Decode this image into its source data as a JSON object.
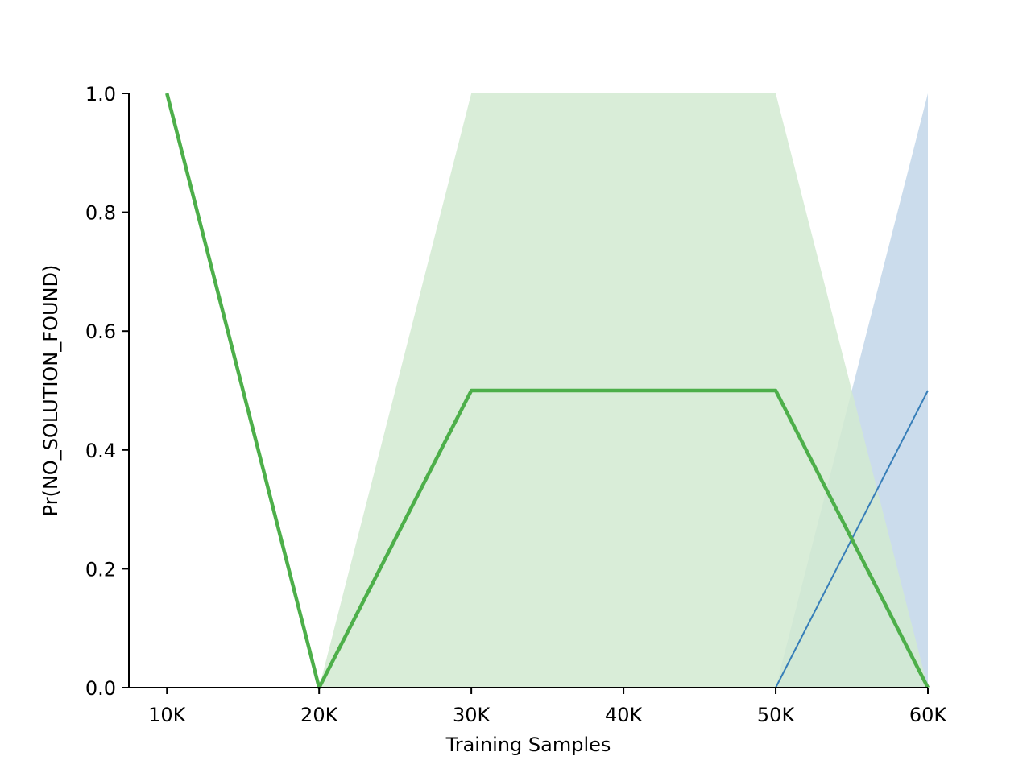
{
  "chart_data": {
    "type": "line",
    "title": "",
    "xlabel": "Training Samples",
    "ylabel": "Pr(NO_SOLUTION_FOUND)",
    "x": [
      10000,
      20000,
      30000,
      40000,
      50000,
      60000
    ],
    "x_tick_labels": [
      "10K",
      "20K",
      "30K",
      "40K",
      "50K",
      "60K"
    ],
    "y_ticks": [
      0.0,
      0.2,
      0.4,
      0.6,
      0.8,
      1.0
    ],
    "y_tick_labels": [
      "0.0",
      "0.2",
      "0.4",
      "0.6",
      "0.8",
      "1.0"
    ],
    "xlim": [
      7500,
      60000
    ],
    "ylim": [
      0.0,
      1.0
    ],
    "grid": false,
    "legend": "none",
    "series": [
      {
        "color": "#377eb8",
        "band_color": "#cbdcec",
        "values": [
          1.0,
          0.0,
          0.0,
          0.0,
          0.0,
          0.5
        ],
        "lower": [
          1.0,
          0.0,
          0.0,
          0.0,
          0.0,
          0.0
        ],
        "upper": [
          1.0,
          0.0,
          0.0,
          0.0,
          0.0,
          1.0
        ]
      },
      {
        "color": "#4daf4a",
        "band_color": "#d2ead1",
        "values": [
          1.0,
          0.0,
          0.5,
          0.5,
          0.5,
          0.0
        ],
        "lower": [
          1.0,
          0.0,
          0.0,
          0.0,
          0.0,
          0.0
        ],
        "upper": [
          1.0,
          0.0,
          1.0,
          1.0,
          1.0,
          0.0
        ]
      }
    ]
  }
}
